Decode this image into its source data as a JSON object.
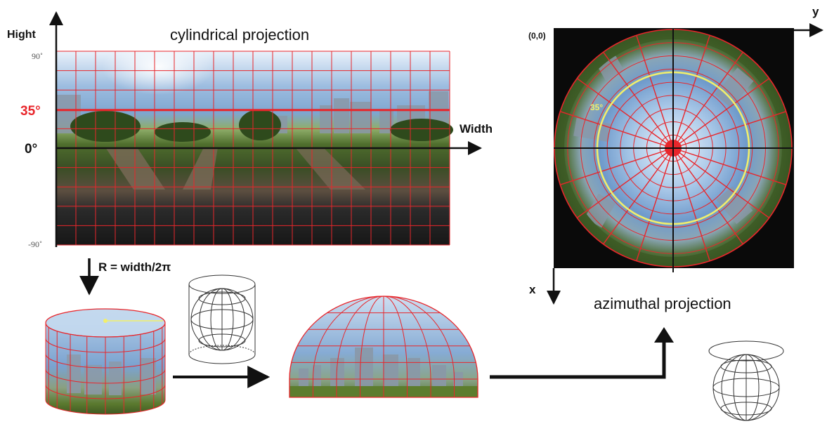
{
  "labels": {
    "cyl_title": "cylindrical projection",
    "azi_title": "azimuthal projection",
    "hight": "Hight",
    "width": "Width",
    "tick_90": "90˚",
    "tick_35": "35°",
    "tick_0": "0°",
    "tick_m90": "-90˚",
    "radius_formula": "R = width/2π",
    "origin": "(0,0)",
    "axis_x": "x",
    "axis_y": "y",
    "ring_35": "35°"
  },
  "colors": {
    "grid": "#e8262b",
    "highlight": "#f2ef6a",
    "axis": "#111111",
    "sky_top": "#d8e8f6",
    "sky_mid": "#7fa7d2",
    "ground": "#3e5a26",
    "road": "#6b5a4a",
    "dark": "#1c1c1c"
  }
}
